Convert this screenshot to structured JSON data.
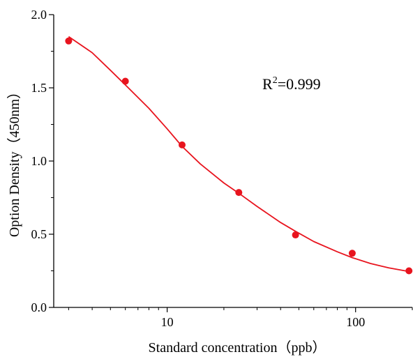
{
  "chart_data": {
    "type": "scatter",
    "title": "",
    "xlabel": "Standard concentration（ppb）",
    "ylabel": "Option Density（450nm）",
    "xscale": "log",
    "xlim": [
      2.5,
      200
    ],
    "ylim": [
      0,
      2.0
    ],
    "xticks": [
      10,
      100
    ],
    "xtick_labels": [
      "10",
      "100"
    ],
    "yticks": [
      0,
      0.5,
      1.0,
      1.5,
      2.0
    ],
    "ytick_labels": [
      "0.0",
      "0.5",
      "1.0",
      "1.5",
      "2.0"
    ],
    "grid": false,
    "legend": "none",
    "series": [
      {
        "kind": "points",
        "x": [
          3,
          6,
          12,
          24,
          48,
          96,
          192
        ],
        "y": [
          1.82,
          1.545,
          1.11,
          0.785,
          0.495,
          0.37,
          0.25
        ]
      },
      {
        "kind": "fit-line",
        "x": [
          3,
          4,
          5,
          6,
          8,
          10,
          12,
          15,
          20,
          24,
          30,
          40,
          48,
          60,
          80,
          96,
          120,
          150,
          192
        ],
        "y": [
          1.85,
          1.74,
          1.62,
          1.52,
          1.36,
          1.22,
          1.1,
          0.98,
          0.85,
          0.78,
          0.69,
          0.58,
          0.52,
          0.45,
          0.38,
          0.34,
          0.3,
          0.27,
          0.245
        ]
      }
    ],
    "annotation": {
      "base": "R",
      "sup": "2",
      "rest": "=0.999"
    },
    "colors": {
      "series": "#e8141e",
      "axis": "#000000"
    }
  }
}
